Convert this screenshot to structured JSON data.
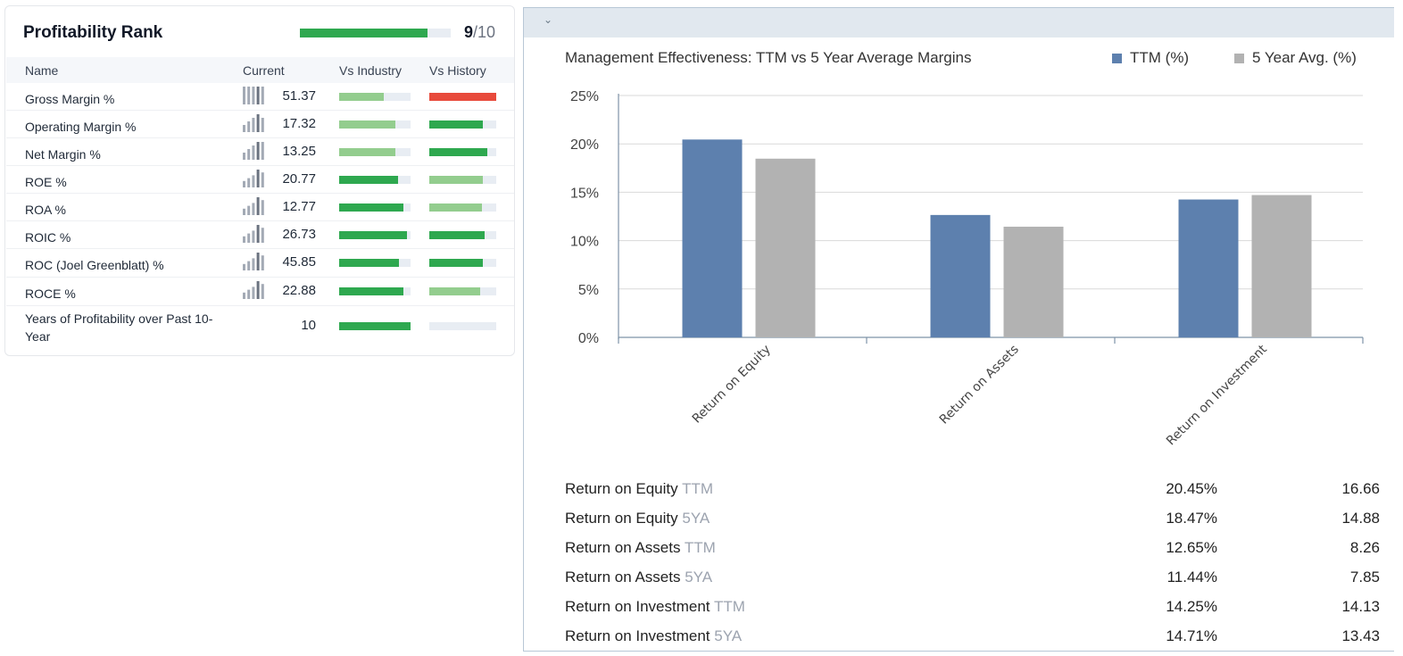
{
  "profitability": {
    "title": "Profitability Rank",
    "score": "9",
    "score_max": "/10",
    "score_fraction": 0.9,
    "columns": {
      "name": "Name",
      "current": "Current",
      "vs_industry": "Vs Industry",
      "vs_history": "Vs History"
    },
    "rows": [
      {
        "name": "Gross Margin %",
        "value": "51.37",
        "sparkline": [
          5,
          5,
          5,
          5,
          5
        ],
        "vs_industry": 0.62,
        "vs_industry_color": "#93cd8e",
        "vs_history": 1.0,
        "vs_history_color": "#e84a3b"
      },
      {
        "name": "Operating Margin %",
        "value": "17.32",
        "sparkline": [
          1,
          2,
          3,
          4,
          3
        ],
        "vs_industry": 0.79,
        "vs_industry_color": "#93cd8e",
        "vs_history": 0.8,
        "vs_history_color": "#2ea84f"
      },
      {
        "name": "Net Margin %",
        "value": "13.25",
        "sparkline": [
          1,
          2,
          3,
          4,
          4
        ],
        "vs_industry": 0.79,
        "vs_industry_color": "#93cd8e",
        "vs_history": 0.86,
        "vs_history_color": "#2ea84f"
      },
      {
        "name": "ROE %",
        "value": "20.77",
        "sparkline": [
          1,
          2,
          3,
          5,
          4
        ],
        "vs_industry": 0.83,
        "vs_industry_color": "#2ea84f",
        "vs_history": 0.8,
        "vs_history_color": "#93cd8e"
      },
      {
        "name": "ROA %",
        "value": "12.77",
        "sparkline": [
          1,
          2,
          3,
          5,
          4
        ],
        "vs_industry": 0.9,
        "vs_industry_color": "#2ea84f",
        "vs_history": 0.78,
        "vs_history_color": "#93cd8e"
      },
      {
        "name": "ROIC %",
        "value": "26.73",
        "sparkline": [
          1,
          2,
          3,
          5,
          4
        ],
        "vs_industry": 0.95,
        "vs_industry_color": "#2ea84f",
        "vs_history": 0.82,
        "vs_history_color": "#2ea84f"
      },
      {
        "name": "ROC (Joel Greenblatt) %",
        "value": "45.85",
        "sparkline": [
          1,
          2,
          3,
          5,
          4
        ],
        "vs_industry": 0.84,
        "vs_industry_color": "#2ea84f",
        "vs_history": 0.8,
        "vs_history_color": "#2ea84f"
      },
      {
        "name": "ROCE %",
        "value": "22.88",
        "sparkline": [
          1,
          2,
          3,
          5,
          4
        ],
        "vs_industry": 0.9,
        "vs_industry_color": "#2ea84f",
        "vs_history": 0.76,
        "vs_history_color": "#93cd8e"
      },
      {
        "name": "Years of Profitability over Past 10-Year",
        "value": "10",
        "sparkline": [],
        "vs_industry": 1.0,
        "vs_industry_color": "#2ea84f",
        "vs_history": 0.0,
        "vs_history_color": "#e8edf3"
      }
    ]
  },
  "management": {
    "chevron": "⌄",
    "stats": [
      {
        "label": "Return on Equity",
        "suffix": "TTM",
        "pct": "20.45%",
        "avg": "16.66"
      },
      {
        "label": "Return on Equity",
        "suffix": "5YA",
        "pct": "18.47%",
        "avg": "14.88"
      },
      {
        "label": "Return on Assets",
        "suffix": "TTM",
        "pct": "12.65%",
        "avg": "8.26"
      },
      {
        "label": "Return on Assets",
        "suffix": "5YA",
        "pct": "11.44%",
        "avg": "7.85"
      },
      {
        "label": "Return on Investment",
        "suffix": "TTM",
        "pct": "14.25%",
        "avg": "14.13"
      },
      {
        "label": "Return on Investment",
        "suffix": "5YA",
        "pct": "14.71%",
        "avg": "13.43"
      }
    ]
  },
  "chart_data": {
    "type": "bar",
    "title": "Management Effectiveness: TTM vs 5 Year Average Margins",
    "categories": [
      "Return on Equity",
      "Return on Assets",
      "Return on Investment"
    ],
    "series": [
      {
        "name": "TTM (%)",
        "color": "#5d80ae",
        "values": [
          20.45,
          12.65,
          14.25
        ]
      },
      {
        "name": "5 Year Avg. (%)",
        "color": "#b2b2b2",
        "values": [
          18.47,
          11.44,
          14.71
        ]
      }
    ],
    "y_ticks": [
      "0%",
      "5%",
      "10%",
      "15%",
      "20%",
      "25%"
    ],
    "ylim": [
      0,
      25
    ],
    "grid": true,
    "legend": "top-right"
  }
}
